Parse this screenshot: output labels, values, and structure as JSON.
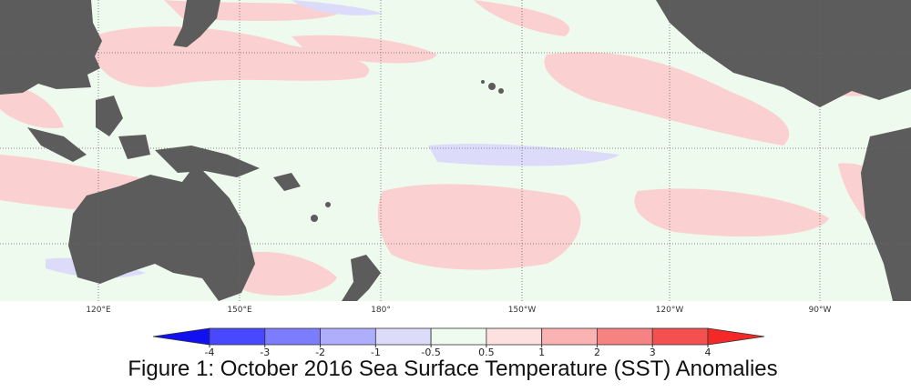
{
  "map": {
    "longitude_labels": [
      "120°E",
      "150°E",
      "180°",
      "150°W",
      "120°W",
      "90°W"
    ]
  },
  "colorbar": {
    "ticks": [
      -4,
      -3,
      -2,
      -1,
      -0.5,
      0.5,
      1,
      2,
      3,
      4
    ],
    "colors": [
      "#1010f0",
      "#4848ff",
      "#7c7cff",
      "#aeaefc",
      "#dcdcfa",
      "#effbef",
      "#fde0e0",
      "#fab2b2",
      "#f78282",
      "#f45050",
      "#f52828"
    ]
  },
  "caption": "Figure 1: October 2016 Sea Surface Temperature (SST) Anomalies"
}
